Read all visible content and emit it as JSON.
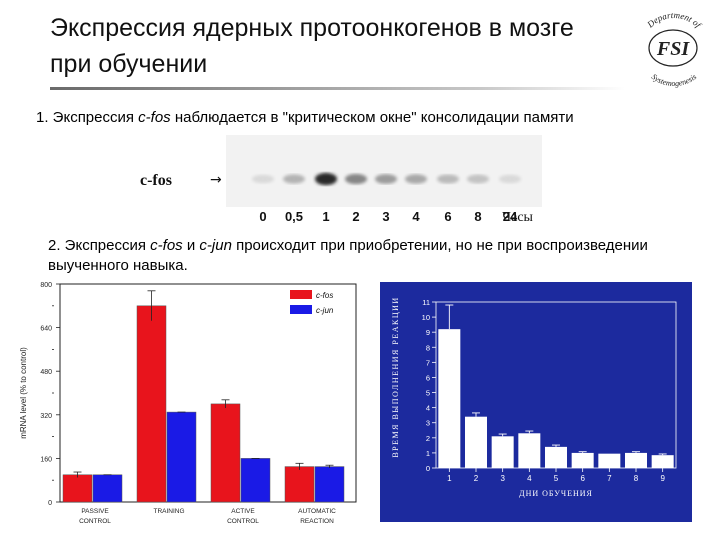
{
  "slide": {
    "title": "Экспрессия ядерных протоонкогенов в мозге при обучении",
    "logo": {
      "text_top": "Department of",
      "text_center": "FSI",
      "text_bottom": "Systemogenesis"
    },
    "point1": {
      "prefix": "1. Экспрессия ",
      "gene": "c-fos",
      "suffix": " наблюдается в \"критическом окне\" консолидации памяти"
    },
    "blot": {
      "label": "c-fos",
      "arrow": "→",
      "lane_labels": [
        "0",
        "0,5",
        "1",
        "2",
        "3",
        "4",
        "6",
        "8",
        "24"
      ],
      "unit": "Часы",
      "band_intensity": [
        0.08,
        0.25,
        0.85,
        0.45,
        0.35,
        0.3,
        0.22,
        0.18,
        0.08
      ]
    },
    "point2": {
      "prefix": "2. Экспрессия ",
      "gene1": "c-fos",
      "middle": " и ",
      "gene2": "c-jun",
      "suffix": " происходит при приобретении, но не при воспроизведении выученного навыка."
    }
  },
  "chart_data": [
    {
      "type": "bar",
      "ylabel": "mRNA level (% to control)",
      "ylim": [
        0,
        800
      ],
      "yticks": [
        "0",
        "160",
        "320",
        "480",
        "640",
        "800"
      ],
      "categories": [
        [
          "PASSIVE",
          "CONTROL"
        ],
        [
          "TRAINING",
          ""
        ],
        [
          "ACTIVE",
          "CONTROL"
        ],
        [
          "AUTOMATIC",
          "REACTION"
        ]
      ],
      "series": [
        {
          "name": "c-fos",
          "color": "#e8141c",
          "values": [
            100,
            720,
            360,
            130
          ],
          "errors": [
            10,
            55,
            15,
            12
          ]
        },
        {
          "name": "c-jun",
          "color": "#1a1ae6",
          "values": [
            100,
            330,
            160,
            130
          ],
          "errors": [
            0,
            0,
            0,
            5
          ]
        }
      ],
      "legend": "top-right"
    },
    {
      "type": "bar",
      "ylabel": "ВРЕМЯ ВЫПОЛНЕНИЯ РЕАКЦИИ",
      "xlabel": "ДНИ ОБУЧЕНИЯ",
      "ylim": [
        0,
        11
      ],
      "yticks": [
        "0",
        "1",
        "2",
        "3",
        "4",
        "5",
        "6",
        "7",
        "8",
        "9",
        "10",
        "11"
      ],
      "categories": [
        "1",
        "2",
        "3",
        "4",
        "5",
        "6",
        "7",
        "8",
        "9"
      ],
      "values": [
        9.2,
        3.4,
        2.1,
        2.3,
        1.4,
        1.0,
        0.95,
        1.0,
        0.85
      ],
      "errors": [
        1.6,
        0.25,
        0.15,
        0.15,
        0.12,
        0.08,
        0,
        0.08,
        0.08
      ],
      "background": "#1c2a9e",
      "bar_color": "#ffffff"
    }
  ]
}
